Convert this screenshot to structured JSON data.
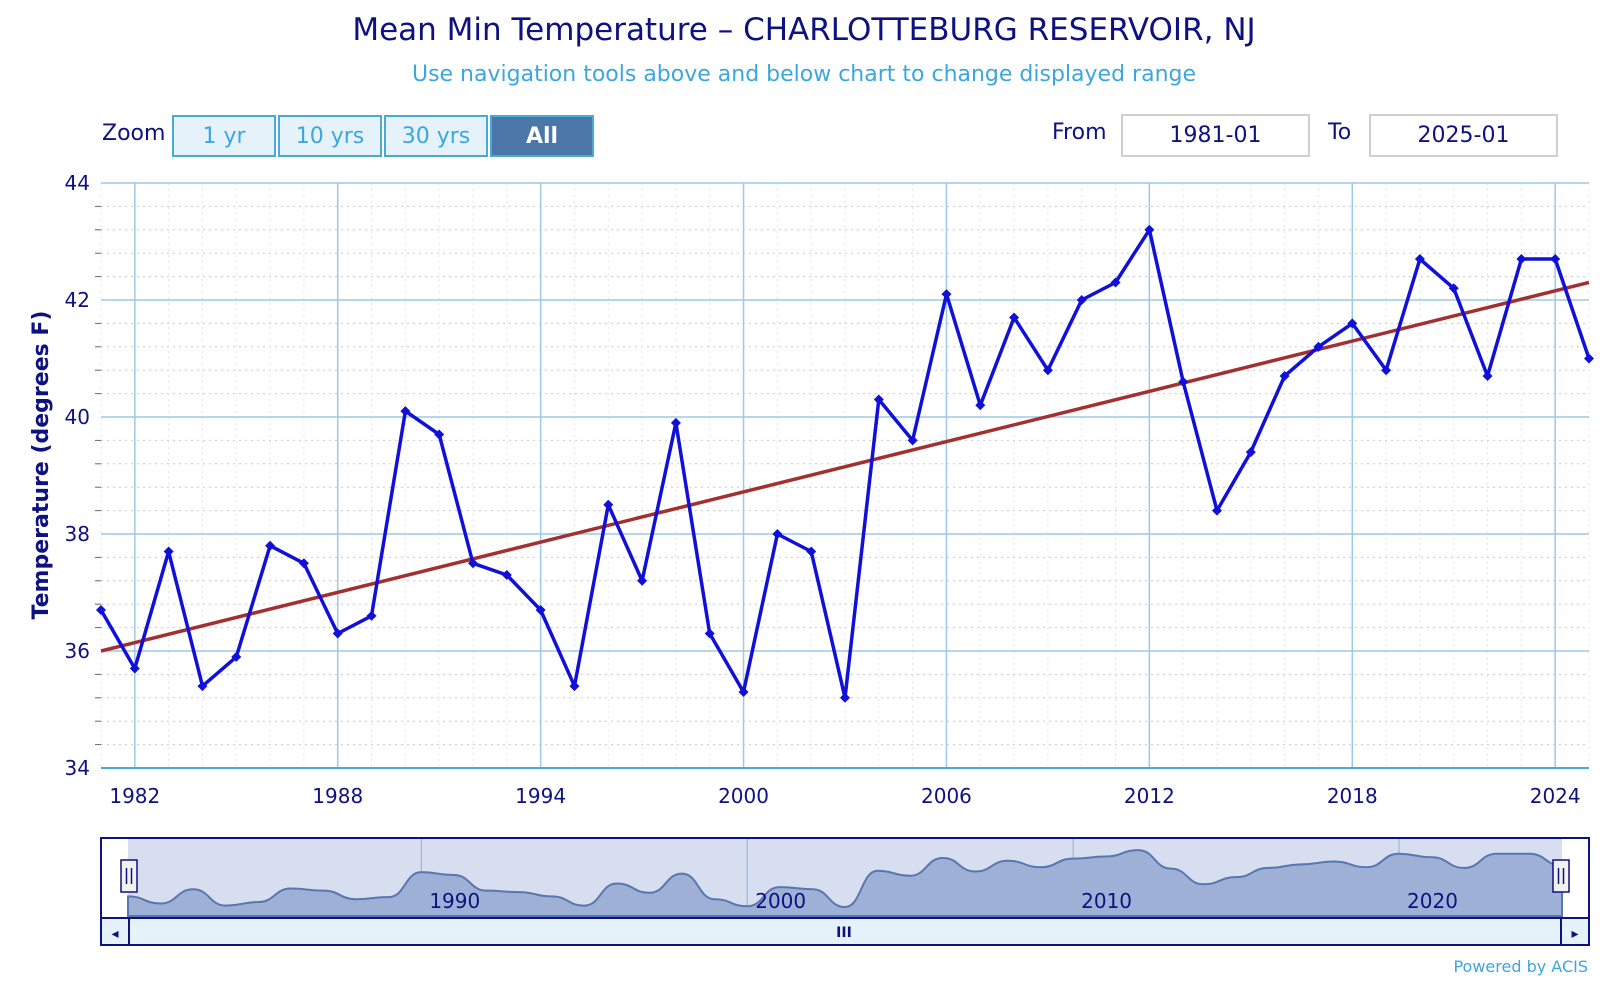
{
  "header": {
    "title": "Mean Min Temperature – CHARLOTTEBURG RESERVOIR, NJ",
    "subtitle": "Use navigation tools above and below chart to change displayed range"
  },
  "zoom": {
    "label": "Zoom",
    "buttons": [
      "1 yr",
      "10 yrs",
      "30 yrs",
      "All"
    ],
    "active": "All"
  },
  "range": {
    "from_label": "From",
    "from_value": "1981-01",
    "to_label": "To",
    "to_value": "2025-01"
  },
  "colors": {
    "series": "#1010d8",
    "trend": "#a23030",
    "grid": "#9ec9e6",
    "navigator_fill": "#9eb0d6",
    "text": "#0e1180",
    "accent": "#3ca6dd"
  },
  "chart_data": {
    "type": "line",
    "title": "Mean Min Temperature – CHARLOTTEBURG RESERVOIR, NJ",
    "ylabel": "Temperature (degrees F)",
    "xlabel": "",
    "ylim": [
      34,
      44
    ],
    "xlim": [
      1981,
      2025
    ],
    "y_ticks": [
      34,
      36,
      38,
      40,
      42,
      44
    ],
    "x_ticks": [
      1982,
      1988,
      1994,
      2000,
      2006,
      2012,
      2018,
      2024
    ],
    "grid": true,
    "legend": "none",
    "series": [
      {
        "x": [
          1981,
          1982,
          1983,
          1984,
          1985,
          1986,
          1987,
          1988,
          1989,
          1990,
          1991,
          1992,
          1993,
          1994,
          1995,
          1996,
          1997,
          1998,
          1999,
          2000,
          2001,
          2002,
          2003,
          2004,
          2005,
          2006,
          2007,
          2008,
          2009,
          2010,
          2011,
          2012,
          2013,
          2014,
          2015,
          2016,
          2017,
          2018,
          2019,
          2020,
          2021,
          2022,
          2023,
          2024,
          2025
        ],
        "values": [
          36.7,
          35.7,
          37.7,
          35.4,
          35.9,
          37.8,
          37.5,
          36.3,
          36.6,
          40.1,
          39.7,
          37.5,
          37.3,
          36.7,
          35.4,
          38.5,
          37.2,
          39.9,
          36.3,
          35.3,
          38.0,
          37.7,
          35.2,
          40.3,
          39.6,
          42.1,
          40.2,
          41.7,
          40.8,
          42.0,
          42.3,
          43.2,
          40.6,
          38.4,
          39.4,
          40.7,
          41.2,
          41.6,
          40.8,
          42.7,
          42.2,
          40.7,
          42.7,
          42.7,
          41.0
        ]
      },
      {
        "type": "trend",
        "x": [
          1981,
          2025
        ],
        "values": [
          36.0,
          42.3
        ]
      }
    ]
  },
  "navigator": {
    "labels": [
      "1990",
      "2000",
      "2010",
      "2020"
    ],
    "scroll_left": "◂",
    "scroll_right": "▸",
    "scroll_grip": "III",
    "handle_glyph": "II"
  },
  "footer": {
    "powered": "Powered by ACIS"
  }
}
